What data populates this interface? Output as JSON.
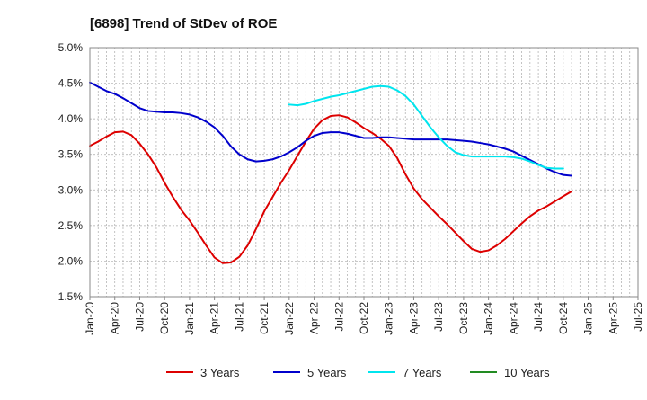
{
  "chart_data": {
    "type": "line",
    "title": "[6898]  Trend of StDev of ROE",
    "xlabel": "",
    "ylabel": "",
    "ylim": [
      1.5,
      5.0
    ],
    "y_ticks": [
      "1.5%",
      "2.0%",
      "2.5%",
      "3.0%",
      "3.5%",
      "4.0%",
      "4.5%",
      "5.0%"
    ],
    "y_tick_values": [
      1.5,
      2.0,
      2.5,
      3.0,
      3.5,
      4.0,
      4.5,
      5.0
    ],
    "x_tick_labels": [
      "Jan-20",
      "Apr-20",
      "Jul-20",
      "Oct-20",
      "Jan-21",
      "Apr-21",
      "Jul-21",
      "Oct-21",
      "Jan-22",
      "Apr-22",
      "Jul-22",
      "Oct-22",
      "Jan-23",
      "Apr-23",
      "Jul-23",
      "Oct-23",
      "Jan-24",
      "Apr-24",
      "Jul-24",
      "Oct-24",
      "Jan-25",
      "Apr-25",
      "Jul-25"
    ],
    "x_range": [
      "Jan-20",
      "Jul-25"
    ],
    "grid": true,
    "legend_position": "bottom",
    "series": [
      {
        "name": "3 Years",
        "color": "#dd0000",
        "start": "Jan-20",
        "values": [
          3.62,
          3.68,
          3.75,
          3.81,
          3.82,
          3.77,
          3.65,
          3.5,
          3.32,
          3.1,
          2.9,
          2.72,
          2.57,
          2.4,
          2.22,
          2.05,
          1.97,
          1.98,
          2.06,
          2.22,
          2.45,
          2.7,
          2.9,
          3.1,
          3.28,
          3.48,
          3.68,
          3.86,
          3.98,
          4.04,
          4.05,
          4.02,
          3.95,
          3.87,
          3.8,
          3.72,
          3.62,
          3.45,
          3.22,
          3.02,
          2.87,
          2.75,
          2.63,
          2.52,
          2.4,
          2.28,
          2.17,
          2.13,
          2.15,
          2.22,
          2.31,
          2.42,
          2.53,
          2.63,
          2.71,
          2.77,
          2.84,
          2.91,
          2.98
        ]
      },
      {
        "name": "5 Years",
        "color": "#0000cc",
        "start": "Jan-20",
        "values": [
          4.51,
          4.45,
          4.39,
          4.35,
          4.29,
          4.22,
          4.15,
          4.11,
          4.1,
          4.09,
          4.09,
          4.08,
          4.06,
          4.02,
          3.96,
          3.88,
          3.76,
          3.61,
          3.5,
          3.43,
          3.4,
          3.41,
          3.43,
          3.47,
          3.53,
          3.6,
          3.69,
          3.76,
          3.8,
          3.81,
          3.81,
          3.79,
          3.76,
          3.73,
          3.73,
          3.74,
          3.74,
          3.73,
          3.72,
          3.71,
          3.71,
          3.71,
          3.71,
          3.71,
          3.7,
          3.69,
          3.68,
          3.66,
          3.64,
          3.61,
          3.58,
          3.54,
          3.48,
          3.42,
          3.36,
          3.3,
          3.25,
          3.21,
          3.2
        ]
      },
      {
        "name": "7 Years",
        "color": "#00e5ee",
        "start": "Jan-22",
        "values": [
          4.2,
          4.19,
          4.21,
          4.25,
          4.28,
          4.31,
          4.33,
          4.36,
          4.39,
          4.42,
          4.45,
          4.46,
          4.45,
          4.4,
          4.32,
          4.2,
          4.04,
          3.88,
          3.74,
          3.62,
          3.53,
          3.49,
          3.47,
          3.47,
          3.47,
          3.47,
          3.47,
          3.46,
          3.44,
          3.4,
          3.35,
          3.31,
          3.3,
          3.3
        ]
      },
      {
        "name": "10 Years",
        "color": "#228b22",
        "start": "Jan-25",
        "values": []
      }
    ]
  }
}
